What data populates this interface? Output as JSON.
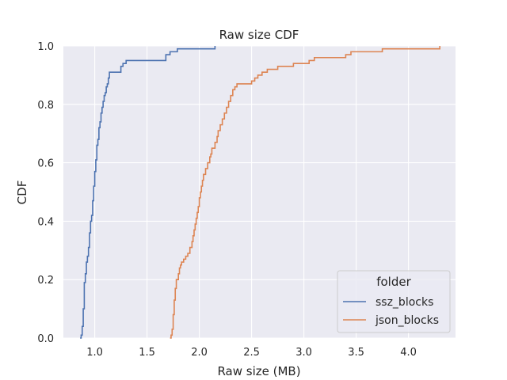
{
  "chart_data": {
    "type": "line",
    "step": true,
    "title": "Raw size CDF",
    "xlabel": "Raw size (MB)",
    "ylabel": "CDF",
    "xlim": [
      0.7,
      4.45
    ],
    "ylim": [
      0,
      1
    ],
    "xticks": [
      1.0,
      1.5,
      2.0,
      2.5,
      3.0,
      3.5,
      4.0
    ],
    "xtick_labels": [
      "1.0",
      "1.5",
      "2.0",
      "2.5",
      "3.0",
      "3.5",
      "4.0"
    ],
    "yticks": [
      0,
      0.2,
      0.4,
      0.6,
      0.8,
      1.0
    ],
    "ytick_labels": [
      "0.0",
      "0.2",
      "0.4",
      "0.6",
      "0.8",
      "1.0"
    ],
    "grid": true,
    "legend": {
      "title": "folder",
      "placement": "lower-right"
    },
    "series": [
      {
        "name": "ssz_blocks",
        "color": "#4c72b0",
        "x": [
          0.86,
          0.87,
          0.88,
          0.89,
          0.9,
          0.91,
          0.92,
          0.93,
          0.94,
          0.95,
          0.96,
          0.97,
          0.98,
          0.99,
          1.0,
          1.01,
          1.02,
          1.03,
          1.04,
          1.05,
          1.06,
          1.07,
          1.08,
          1.09,
          1.1,
          1.11,
          1.12,
          1.13,
          1.14,
          1.16,
          1.18,
          1.23,
          1.25,
          1.27,
          1.3,
          1.45,
          1.49,
          1.68,
          1.72,
          1.79,
          2.15
        ],
        "y": [
          0.0,
          0.01,
          0.04,
          0.1,
          0.19,
          0.22,
          0.26,
          0.28,
          0.31,
          0.36,
          0.4,
          0.42,
          0.47,
          0.52,
          0.57,
          0.61,
          0.66,
          0.68,
          0.72,
          0.74,
          0.77,
          0.79,
          0.81,
          0.83,
          0.84,
          0.86,
          0.87,
          0.89,
          0.91,
          0.91,
          0.91,
          0.91,
          0.93,
          0.94,
          0.95,
          0.95,
          0.95,
          0.97,
          0.98,
          0.99,
          1.0
        ]
      },
      {
        "name": "json_blocks",
        "color": "#dd8452",
        "x": [
          1.72,
          1.73,
          1.74,
          1.75,
          1.76,
          1.77,
          1.78,
          1.8,
          1.81,
          1.82,
          1.83,
          1.85,
          1.87,
          1.89,
          1.91,
          1.93,
          1.94,
          1.95,
          1.96,
          1.97,
          1.98,
          1.99,
          2.0,
          2.01,
          2.02,
          2.03,
          2.04,
          2.06,
          2.08,
          2.1,
          2.11,
          2.12,
          2.15,
          2.17,
          2.18,
          2.2,
          2.22,
          2.24,
          2.26,
          2.28,
          2.3,
          2.32,
          2.34,
          2.36,
          2.4,
          2.45,
          2.5,
          2.53,
          2.56,
          2.6,
          2.65,
          2.75,
          2.9,
          3.05,
          3.1,
          3.35,
          3.4,
          3.45,
          3.6,
          3.75,
          4.3
        ],
        "y": [
          0.0,
          0.01,
          0.03,
          0.08,
          0.13,
          0.17,
          0.2,
          0.22,
          0.24,
          0.25,
          0.26,
          0.27,
          0.28,
          0.29,
          0.31,
          0.33,
          0.35,
          0.37,
          0.39,
          0.41,
          0.43,
          0.45,
          0.48,
          0.5,
          0.52,
          0.54,
          0.56,
          0.58,
          0.6,
          0.62,
          0.63,
          0.65,
          0.67,
          0.69,
          0.71,
          0.73,
          0.75,
          0.77,
          0.79,
          0.81,
          0.83,
          0.85,
          0.86,
          0.87,
          0.87,
          0.87,
          0.88,
          0.89,
          0.9,
          0.91,
          0.92,
          0.93,
          0.94,
          0.95,
          0.96,
          0.96,
          0.97,
          0.98,
          0.98,
          0.99,
          1.0
        ]
      }
    ]
  }
}
